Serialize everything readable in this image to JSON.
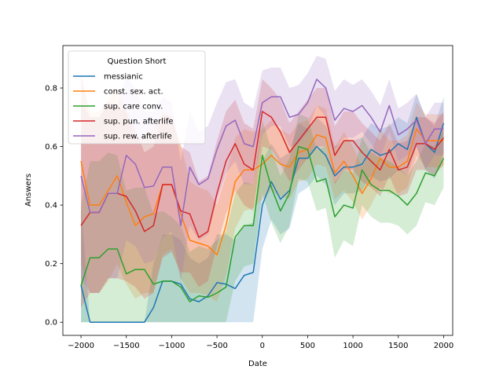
{
  "chart_data": {
    "type": "line",
    "xlabel": "Date",
    "ylabel": "Answers",
    "xlim": [
      -2200,
      2100
    ],
    "ylim": [
      -0.045,
      0.945
    ],
    "xticks": [
      -2000,
      -1500,
      -1000,
      -500,
      0,
      500,
      1000,
      1500,
      2000
    ],
    "yticks": [
      0.0,
      0.2,
      0.4,
      0.6,
      0.8
    ],
    "xtick_labels": [
      "−2000",
      "−1500",
      "−1000",
      "−500",
      "0",
      "500",
      "1000",
      "1500",
      "2000"
    ],
    "ytick_labels": [
      "0.0",
      "0.2",
      "0.4",
      "0.6",
      "0.8"
    ],
    "grid": false,
    "legend": {
      "title": "Question Short",
      "placement": "top-left"
    },
    "x": [
      -2000,
      -1900,
      -1800,
      -1700,
      -1600,
      -1500,
      -1400,
      -1300,
      -1200,
      -1100,
      -1000,
      -900,
      -800,
      -700,
      -600,
      -500,
      -400,
      -300,
      -200,
      -100,
      0,
      100,
      200,
      300,
      400,
      500,
      600,
      700,
      800,
      900,
      1000,
      1100,
      1200,
      1300,
      1400,
      1500,
      1600,
      1700,
      1800,
      1900,
      2000
    ],
    "series": [
      {
        "name": "messianic",
        "color": "#1f77b4",
        "values": [
          0.125,
          0.0,
          0.0,
          0.0,
          0.0,
          0.0,
          0.0,
          0.0,
          0.05,
          0.14,
          0.14,
          0.13,
          0.08,
          0.07,
          0.09,
          0.135,
          0.13,
          0.115,
          0.16,
          0.17,
          0.4,
          0.48,
          0.42,
          0.45,
          0.56,
          0.56,
          0.6,
          0.57,
          0.5,
          0.53,
          0.53,
          0.54,
          0.59,
          0.57,
          0.58,
          0.61,
          0.59,
          0.7,
          0.61,
          0.58,
          0.68
        ],
        "lower": [
          0.0,
          0.0,
          0.0,
          0.0,
          0.0,
          0.0,
          0.0,
          0.0,
          0.0,
          0.0,
          0.0,
          0.0,
          0.0,
          0.0,
          0.0,
          0.0,
          0.0,
          0.0,
          0.0,
          0.0,
          0.25,
          0.35,
          0.3,
          0.32,
          0.44,
          0.46,
          0.5,
          0.47,
          0.4,
          0.44,
          0.44,
          0.45,
          0.5,
          0.48,
          0.49,
          0.52,
          0.5,
          0.6,
          0.52,
          0.49,
          0.58
        ],
        "upper": [
          0.4,
          0.0,
          0.0,
          0.0,
          0.0,
          0.0,
          0.0,
          0.0,
          0.2,
          0.3,
          0.3,
          0.28,
          0.22,
          0.2,
          0.22,
          0.3,
          0.3,
          0.28,
          0.33,
          0.34,
          0.55,
          0.61,
          0.56,
          0.58,
          0.68,
          0.66,
          0.7,
          0.67,
          0.6,
          0.62,
          0.62,
          0.63,
          0.68,
          0.66,
          0.67,
          0.7,
          0.68,
          0.78,
          0.7,
          0.67,
          0.77
        ]
      },
      {
        "name": "const. sex. act.",
        "color": "#ff7f0e",
        "values": [
          0.55,
          0.4,
          0.4,
          0.45,
          0.5,
          0.41,
          0.33,
          0.36,
          0.37,
          0.47,
          0.47,
          0.37,
          0.28,
          0.27,
          0.26,
          0.23,
          0.33,
          0.48,
          0.52,
          0.52,
          0.54,
          0.57,
          0.54,
          0.53,
          0.58,
          0.59,
          0.64,
          0.63,
          0.51,
          0.55,
          0.5,
          0.44,
          0.49,
          0.56,
          0.53,
          0.53,
          0.55,
          0.66,
          0.62,
          0.62,
          0.62
        ],
        "lower": [
          0.2,
          0.1,
          0.1,
          0.14,
          0.2,
          0.13,
          0.08,
          0.1,
          0.1,
          0.23,
          0.25,
          0.15,
          0.1,
          0.1,
          0.09,
          0.07,
          0.16,
          0.32,
          0.38,
          0.39,
          0.42,
          0.45,
          0.43,
          0.42,
          0.48,
          0.49,
          0.54,
          0.53,
          0.42,
          0.45,
          0.41,
          0.35,
          0.4,
          0.46,
          0.44,
          0.44,
          0.46,
          0.57,
          0.53,
          0.53,
          0.53
        ],
        "upper": [
          0.85,
          0.72,
          0.72,
          0.76,
          0.8,
          0.72,
          0.62,
          0.64,
          0.66,
          0.72,
          0.7,
          0.61,
          0.48,
          0.46,
          0.45,
          0.4,
          0.5,
          0.63,
          0.66,
          0.65,
          0.66,
          0.69,
          0.66,
          0.64,
          0.68,
          0.69,
          0.74,
          0.73,
          0.6,
          0.65,
          0.6,
          0.53,
          0.58,
          0.66,
          0.62,
          0.62,
          0.64,
          0.75,
          0.71,
          0.71,
          0.71
        ]
      },
      {
        "name": "sup. care conv.",
        "color": "#2ca02c",
        "values": [
          0.125,
          0.22,
          0.22,
          0.25,
          0.25,
          0.165,
          0.18,
          0.18,
          0.13,
          0.14,
          0.14,
          0.12,
          0.07,
          0.09,
          0.085,
          0.1,
          0.12,
          0.29,
          0.33,
          0.33,
          0.57,
          0.46,
          0.38,
          0.44,
          0.6,
          0.59,
          0.48,
          0.49,
          0.36,
          0.4,
          0.39,
          0.52,
          0.47,
          0.45,
          0.45,
          0.43,
          0.4,
          0.44,
          0.51,
          0.5,
          0.56
        ],
        "lower": [
          0.0,
          0.0,
          0.0,
          0.0,
          0.0,
          0.0,
          0.0,
          0.0,
          0.0,
          0.0,
          0.0,
          0.0,
          0.0,
          0.0,
          0.0,
          0.0,
          0.0,
          0.14,
          0.19,
          0.2,
          0.44,
          0.34,
          0.27,
          0.33,
          0.49,
          0.48,
          0.38,
          0.39,
          0.22,
          0.28,
          0.26,
          0.4,
          0.36,
          0.34,
          0.34,
          0.33,
          0.3,
          0.33,
          0.41,
          0.4,
          0.46
        ],
        "upper": [
          0.4,
          0.55,
          0.55,
          0.58,
          0.57,
          0.45,
          0.46,
          0.46,
          0.37,
          0.38,
          0.36,
          0.33,
          0.24,
          0.26,
          0.25,
          0.28,
          0.31,
          0.44,
          0.48,
          0.47,
          0.69,
          0.59,
          0.5,
          0.56,
          0.71,
          0.7,
          0.59,
          0.6,
          0.48,
          0.52,
          0.51,
          0.63,
          0.58,
          0.56,
          0.55,
          0.53,
          0.5,
          0.55,
          0.61,
          0.6,
          0.66
        ]
      },
      {
        "name": "sup. pun. afterlife",
        "color": "#d62728",
        "values": [
          0.33,
          0.375,
          0.375,
          0.44,
          0.44,
          0.43,
          0.38,
          0.31,
          0.33,
          0.47,
          0.47,
          0.38,
          0.37,
          0.29,
          0.31,
          0.44,
          0.55,
          0.61,
          0.54,
          0.52,
          0.72,
          0.7,
          0.65,
          0.58,
          0.62,
          0.66,
          0.7,
          0.7,
          0.57,
          0.62,
          0.62,
          0.58,
          0.55,
          0.52,
          0.59,
          0.52,
          0.53,
          0.61,
          0.61,
          0.59,
          0.63
        ],
        "lower": [
          0.05,
          0.1,
          0.1,
          0.15,
          0.15,
          0.14,
          0.12,
          0.08,
          0.1,
          0.22,
          0.24,
          0.17,
          0.17,
          0.12,
          0.14,
          0.26,
          0.37,
          0.45,
          0.4,
          0.38,
          0.6,
          0.59,
          0.54,
          0.48,
          0.52,
          0.56,
          0.6,
          0.6,
          0.47,
          0.52,
          0.52,
          0.48,
          0.46,
          0.43,
          0.5,
          0.43,
          0.44,
          0.52,
          0.52,
          0.5,
          0.54
        ],
        "upper": [
          0.75,
          0.7,
          0.7,
          0.75,
          0.74,
          0.72,
          0.66,
          0.58,
          0.6,
          0.71,
          0.7,
          0.6,
          0.58,
          0.48,
          0.5,
          0.62,
          0.72,
          0.76,
          0.68,
          0.66,
          0.83,
          0.8,
          0.76,
          0.68,
          0.72,
          0.76,
          0.8,
          0.8,
          0.67,
          0.72,
          0.72,
          0.68,
          0.65,
          0.62,
          0.68,
          0.61,
          0.62,
          0.7,
          0.7,
          0.68,
          0.72
        ]
      },
      {
        "name": "sup. rew. afterlife",
        "color": "#9467bd",
        "values": [
          0.5,
          0.375,
          0.375,
          0.44,
          0.44,
          0.57,
          0.54,
          0.46,
          0.465,
          0.53,
          0.53,
          0.33,
          0.53,
          0.47,
          0.49,
          0.59,
          0.67,
          0.69,
          0.61,
          0.6,
          0.75,
          0.77,
          0.77,
          0.7,
          0.71,
          0.75,
          0.83,
          0.8,
          0.69,
          0.73,
          0.72,
          0.74,
          0.7,
          0.65,
          0.74,
          0.64,
          0.66,
          0.69,
          0.61,
          0.66,
          0.66
        ],
        "lower": [
          0.15,
          0.1,
          0.1,
          0.15,
          0.15,
          0.28,
          0.26,
          0.2,
          0.21,
          0.29,
          0.31,
          0.14,
          0.33,
          0.28,
          0.3,
          0.42,
          0.51,
          0.55,
          0.47,
          0.47,
          0.64,
          0.67,
          0.67,
          0.6,
          0.61,
          0.65,
          0.74,
          0.7,
          0.59,
          0.63,
          0.63,
          0.65,
          0.61,
          0.56,
          0.65,
          0.55,
          0.57,
          0.6,
          0.52,
          0.57,
          0.57
        ],
        "upper": [
          0.85,
          0.7,
          0.7,
          0.75,
          0.74,
          0.84,
          0.8,
          0.72,
          0.72,
          0.77,
          0.75,
          0.55,
          0.72,
          0.65,
          0.67,
          0.75,
          0.82,
          0.83,
          0.75,
          0.73,
          0.86,
          0.87,
          0.87,
          0.8,
          0.81,
          0.85,
          0.91,
          0.9,
          0.79,
          0.83,
          0.81,
          0.83,
          0.79,
          0.74,
          0.83,
          0.73,
          0.75,
          0.78,
          0.7,
          0.75,
          0.75
        ]
      }
    ]
  }
}
